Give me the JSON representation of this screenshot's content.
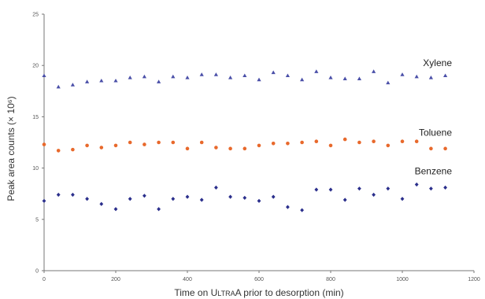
{
  "chart_data": {
    "type": "scatter",
    "title": "",
    "xlabel": "Time on ULTRA prior to desorption (min)",
    "xlabel_parts": {
      "before": "Time on U",
      "smallcaps": "LTRA",
      "after": "A prior to desorption (min)"
    },
    "ylabel": "Peak area counts (× 10⁶)",
    "xlim": [
      0,
      1200
    ],
    "ylim": [
      0,
      25
    ],
    "xticks": [
      0,
      200,
      400,
      600,
      800,
      1000,
      1200
    ],
    "yticks": [
      0,
      5,
      10,
      15,
      20,
      25
    ],
    "grid": false,
    "legend": "none",
    "series": [
      {
        "name": "Xylene",
        "color": "#4a4fa8",
        "marker": "triangle",
        "x": [
          0,
          40,
          80,
          120,
          160,
          200,
          240,
          280,
          320,
          360,
          400,
          440,
          480,
          520,
          560,
          600,
          640,
          680,
          720,
          760,
          800,
          840,
          880,
          920,
          960,
          1000,
          1040,
          1080,
          1120
        ],
        "y": [
          19.0,
          17.9,
          18.1,
          18.4,
          18.5,
          18.5,
          18.8,
          18.9,
          18.4,
          18.9,
          18.8,
          19.1,
          19.1,
          18.8,
          19.0,
          18.6,
          19.3,
          19.0,
          18.6,
          19.4,
          18.8,
          18.7,
          18.7,
          19.4,
          18.3,
          19.1,
          18.9,
          18.8,
          19.0
        ]
      },
      {
        "name": "Toluene",
        "color": "#e8692c",
        "marker": "circle",
        "x": [
          0,
          40,
          80,
          120,
          160,
          200,
          240,
          280,
          320,
          360,
          400,
          440,
          480,
          520,
          560,
          600,
          640,
          680,
          720,
          760,
          800,
          840,
          880,
          920,
          960,
          1000,
          1040,
          1080,
          1120
        ],
        "y": [
          12.3,
          11.7,
          11.8,
          12.2,
          12.0,
          12.2,
          12.5,
          12.3,
          12.5,
          12.5,
          11.9,
          12.5,
          12.0,
          11.9,
          11.9,
          12.2,
          12.4,
          12.4,
          12.5,
          12.6,
          12.2,
          12.8,
          12.5,
          12.6,
          12.2,
          12.6,
          12.6,
          11.9,
          11.9
        ]
      },
      {
        "name": "Benzene",
        "color": "#2b2f8c",
        "marker": "diamond",
        "x": [
          0,
          40,
          80,
          120,
          160,
          200,
          240,
          280,
          320,
          360,
          400,
          440,
          480,
          520,
          560,
          600,
          640,
          680,
          720,
          760,
          800,
          840,
          880,
          920,
          960,
          1000,
          1040,
          1080,
          1120
        ],
        "y": [
          6.8,
          7.4,
          7.4,
          7.0,
          6.5,
          6.0,
          7.0,
          7.3,
          6.0,
          7.0,
          7.2,
          6.9,
          8.1,
          7.2,
          7.1,
          6.8,
          7.2,
          6.2,
          5.9,
          7.9,
          7.9,
          6.9,
          8.0,
          7.4,
          8.0,
          7.0,
          8.4,
          8.0,
          8.1
        ]
      }
    ],
    "annotations": [
      {
        "text": "Xylene",
        "series": "Xylene"
      },
      {
        "text": "Toluene",
        "series": "Toluene"
      },
      {
        "text": "Benzene",
        "series": "Benzene"
      }
    ]
  }
}
